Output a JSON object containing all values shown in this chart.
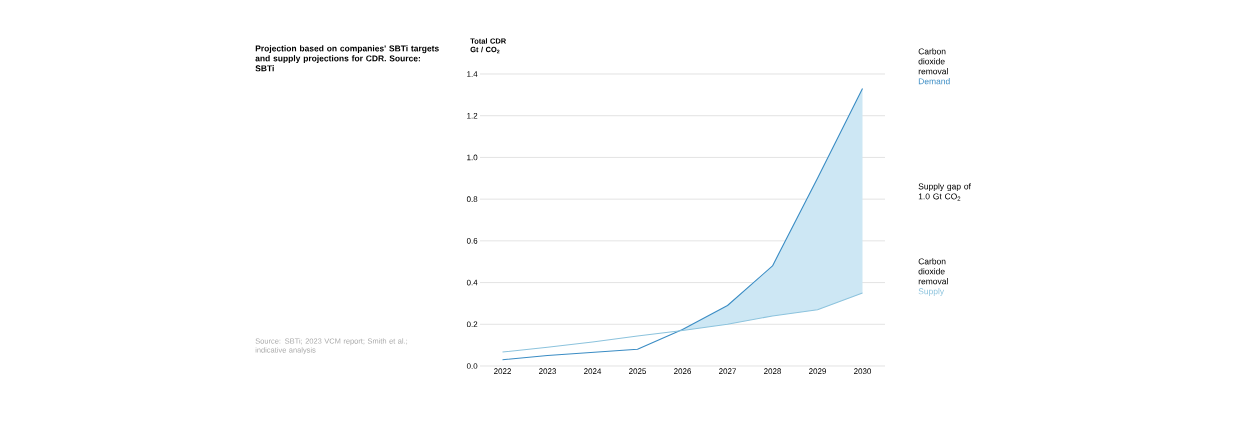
{
  "chart_data": {
    "type": "line",
    "title": "Projection based on companies' SBTi targets and supply projections for CDR. Source: SBTi",
    "ylabel": "Total CDR Gt / CO$_{2}$",
    "categories": [
      "2022",
      "2023",
      "2024",
      "2025",
      "2026",
      "2027",
      "2028",
      "2029",
      "2030"
    ],
    "series": [
      {
        "name": "Demand",
        "color": "#3a8cc4",
        "values": [
          0.03,
          0.05,
          0.065,
          0.08,
          0.175,
          0.29,
          0.48,
          0.9,
          1.33
        ],
        "lower": [
          null,
          null,
          null,
          null,
          0.17,
          0.2,
          0.24,
          0.27,
          0.35
        ],
        "upper": [
          null,
          null,
          null,
          null,
          0.175,
          0.29,
          0.48,
          0.9,
          1.33
        ]
      },
      {
        "name": "Supply",
        "color": "#8cc3dd",
        "values": [
          0.067,
          0.09,
          0.115,
          0.144,
          0.17,
          0.2,
          0.24,
          0.27,
          0.35
        ]
      }
    ],
    "ylim": [
      0,
      1.4
    ],
    "yticks": [
      {
        "value": 0,
        "label": "0.0"
      },
      0.2,
      0.4,
      0.6,
      0.8,
      {
        "value": 1,
        "label": "1.0"
      },
      1.2,
      1.4
    ],
    "grid": "y",
    "annotations": [
      "Carbon dioxide removal",
      "Supply gap of 1.0 Gt CO$_{2}$",
      "Carbon dioxide removal",
      "Source: SBTi; 2023 VCM report; Smith et al.; indicative analysis"
    ]
  }
}
